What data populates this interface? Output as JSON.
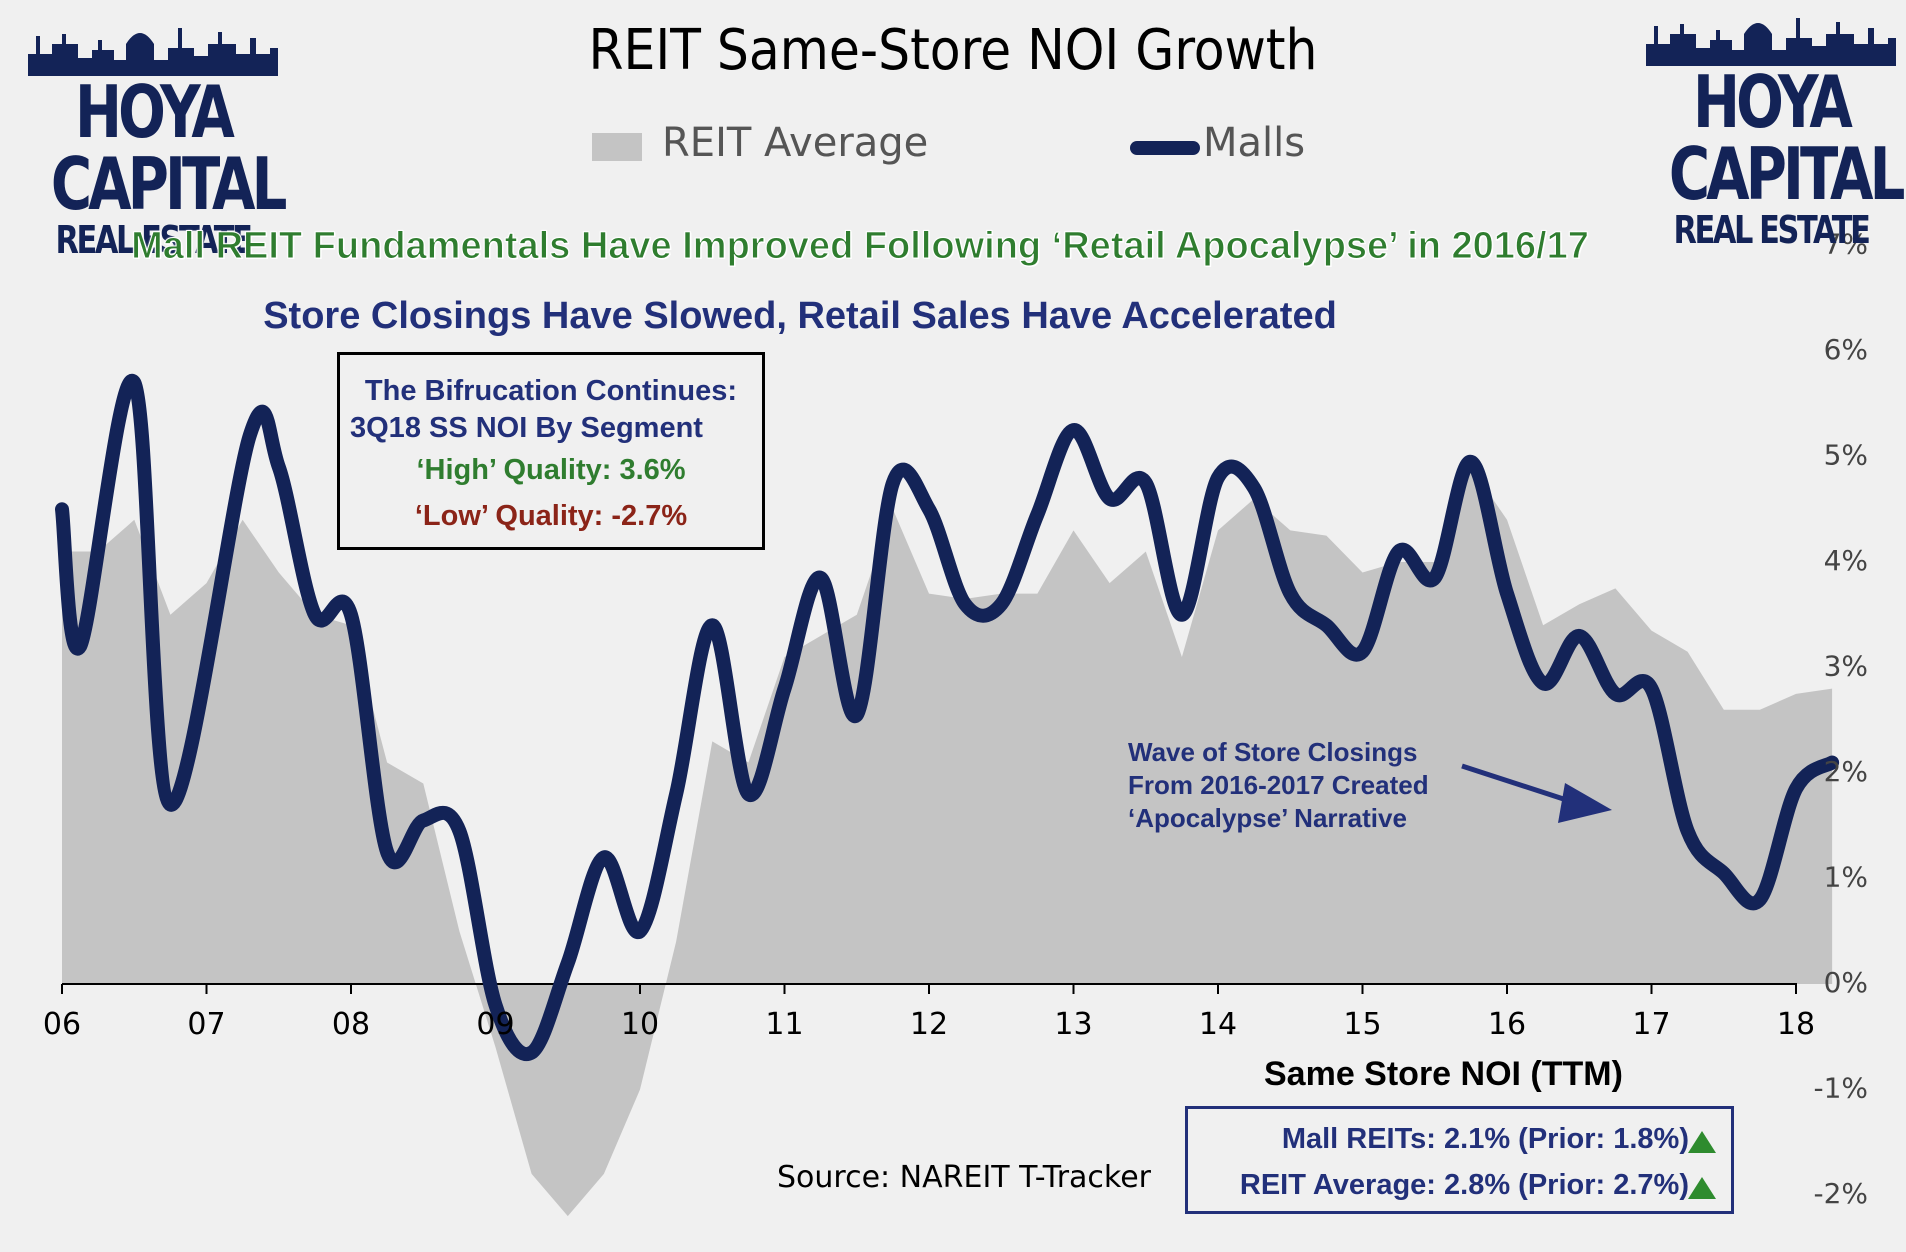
{
  "title": "REIT Same-Store NOI Growth",
  "legend": {
    "area_label": "REIT Average",
    "line_label": "Malls"
  },
  "logo": {
    "name": "HOYA CAPITAL",
    "sub": "REAL ESTATE"
  },
  "headline1": "Mall REIT Fundamentals Have Improved Following ‘Retail Apocalypse’ in 2016/17",
  "headline2": "Store Closings Have Slowed, Retail Sales Have Accelerated",
  "infobox": {
    "line1": "The Bifrucation Continues:",
    "line2": "3Q18 SS NOI By Segment",
    "line3": "‘High’ Quality: 3.6%",
    "line4": "‘Low’ Quality: -2.7%"
  },
  "annotation": {
    "line1": "Wave of Store Closings",
    "line2": "From 2016-2017 Created",
    "line3": "‘Apocalypse’ Narrative"
  },
  "x_axis_title": "Same Store NOI (TTM)",
  "source": "Source: NAREIT T-Tracker",
  "summary": {
    "row1": "Mall REITs: 2.1% (Prior: 1.8%)",
    "row2": "REIT Average: 2.8% (Prior: 2.7%)"
  },
  "colors": {
    "area": "#c4c4c4",
    "line": "#132357",
    "green": "#2f7d2f",
    "red": "#8b2418",
    "navy": "#22307a"
  },
  "chart_data": {
    "type": "area+line",
    "x_ticks": [
      "06",
      "07",
      "08",
      "09",
      "10",
      "11",
      "12",
      "13",
      "14",
      "15",
      "16",
      "17",
      "18"
    ],
    "y_ticks": [
      "7%",
      "6%",
      "5%",
      "4%",
      "3%",
      "2%",
      "1%",
      "0%",
      "-1%",
      "-2%"
    ],
    "ylim": [
      -2,
      7
    ],
    "xlim": [
      2006,
      2018.3
    ],
    "series": [
      {
        "name": "REIT Average",
        "kind": "area",
        "x": [
          2006,
          2006.25,
          2006.5,
          2006.75,
          2007,
          2007.25,
          2007.5,
          2007.75,
          2008,
          2008.25,
          2008.5,
          2008.75,
          2009,
          2009.25,
          2009.5,
          2009.75,
          2010,
          2010.25,
          2010.5,
          2010.75,
          2011,
          2011.25,
          2011.5,
          2011.75,
          2012,
          2012.25,
          2012.5,
          2012.75,
          2013,
          2013.25,
          2013.5,
          2013.75,
          2014,
          2014.25,
          2014.5,
          2014.75,
          2015,
          2015.25,
          2015.5,
          2015.75,
          2016,
          2016.25,
          2016.5,
          2016.75,
          2017,
          2017.25,
          2017.5,
          2017.75,
          2018,
          2018.25
        ],
        "values": [
          4.1,
          4.1,
          4.4,
          3.5,
          3.8,
          4.4,
          3.9,
          3.5,
          3.4,
          2.1,
          1.9,
          0.5,
          -0.6,
          -1.8,
          -2.2,
          -1.8,
          -1.0,
          0.4,
          2.3,
          2.1,
          3.1,
          3.3,
          3.5,
          4.5,
          3.7,
          3.65,
          3.7,
          3.7,
          4.3,
          3.8,
          4.1,
          3.1,
          4.3,
          4.6,
          4.3,
          4.25,
          3.9,
          4.0,
          4.0,
          4.9,
          4.4,
          3.4,
          3.6,
          3.75,
          3.35,
          3.15,
          2.6,
          2.6,
          2.75,
          2.8
        ]
      },
      {
        "name": "Malls",
        "kind": "line",
        "x": [
          2006,
          2006.125,
          2006.5,
          2006.75,
          2007.3,
          2007.5,
          2007.75,
          2008,
          2008.25,
          2008.5,
          2008.75,
          2009,
          2009.25,
          2009.5,
          2009.75,
          2010,
          2010.25,
          2010.5,
          2010.75,
          2011,
          2011.25,
          2011.5,
          2011.75,
          2012,
          2012.25,
          2012.5,
          2012.75,
          2013,
          2013.25,
          2013.5,
          2013.75,
          2014,
          2014.25,
          2014.5,
          2014.75,
          2015,
          2015.25,
          2015.5,
          2015.75,
          2016,
          2016.25,
          2016.5,
          2016.75,
          2017,
          2017.25,
          2017.5,
          2017.75,
          2018,
          2018.25
        ],
        "values": [
          4.5,
          3.2,
          5.7,
          1.7,
          5.2,
          4.9,
          3.5,
          3.5,
          1.25,
          1.55,
          1.45,
          -0.2,
          -0.65,
          0.2,
          1.2,
          0.5,
          1.8,
          3.4,
          1.8,
          2.8,
          3.85,
          2.55,
          4.75,
          4.5,
          3.6,
          3.6,
          4.45,
          5.25,
          4.6,
          4.75,
          3.5,
          4.8,
          4.7,
          3.7,
          3.4,
          3.15,
          4.1,
          3.85,
          4.95,
          3.7,
          2.85,
          3.3,
          2.75,
          2.8,
          1.45,
          1.05,
          0.8,
          1.85,
          2.1
        ]
      }
    ],
    "grid": false,
    "legend_position": "top"
  }
}
